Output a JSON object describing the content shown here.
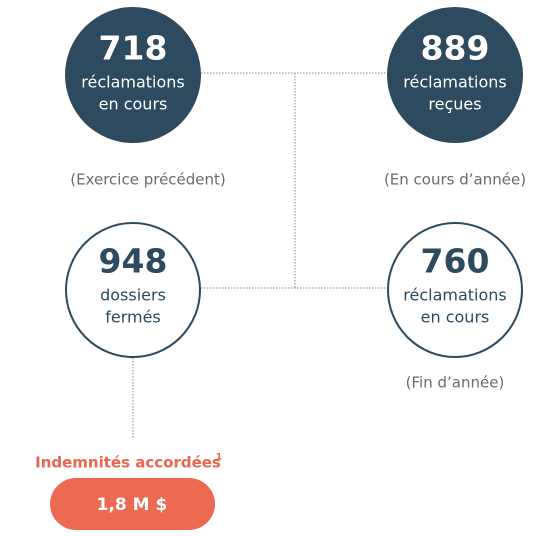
{
  "nodes": [
    {
      "number": "718",
      "label": [
        "réclamations",
        "en cours"
      ],
      "caption": "(Exercice précédent)"
    },
    {
      "number": "889",
      "label": [
        "réclamations",
        "reçues"
      ],
      "caption": "(En cours d’année)"
    },
    {
      "number": "948",
      "label": [
        "dossiers",
        "fermés"
      ]
    },
    {
      "number": "760",
      "label": [
        "réclamations",
        "en cours"
      ],
      "caption": "(Fin d’année)"
    }
  ],
  "award": {
    "title": "Indemnités accordées",
    "footnote": "1",
    "amount": "1,8 M $"
  }
}
